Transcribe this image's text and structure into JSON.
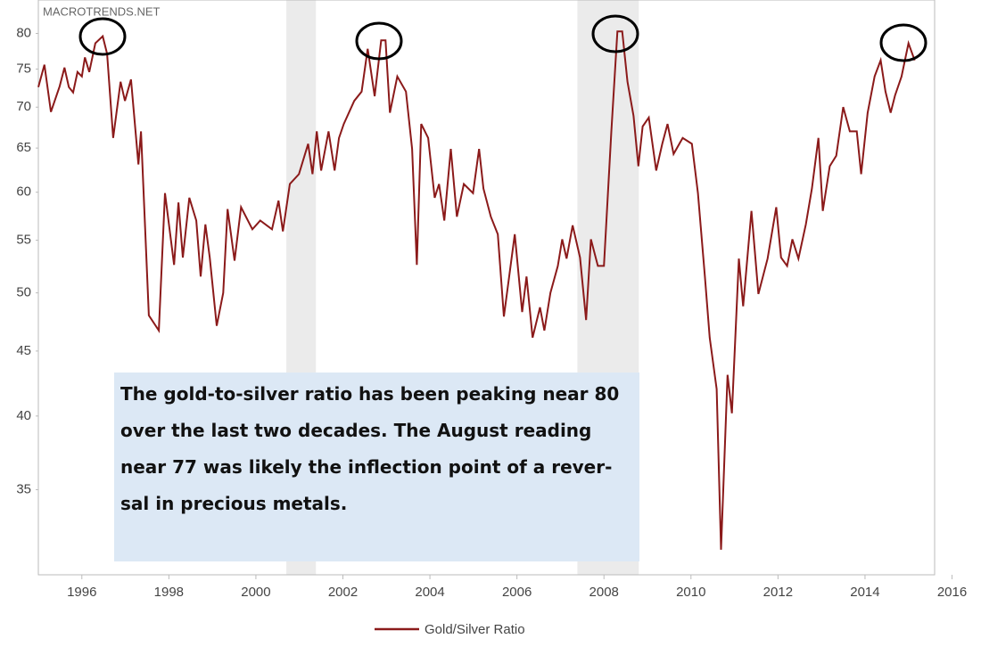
{
  "chart_data": {
    "type": "line",
    "watermark": "MACROTRENDS.NET",
    "log_scale": true,
    "grid": false,
    "xlim": [
      1995,
      2015.6
    ],
    "xticks": [
      1996,
      1998,
      2000,
      2002,
      2004,
      2006,
      2008,
      2010,
      2012,
      2014,
      2016
    ],
    "ylim": [
      30,
      85
    ],
    "yticks": [
      35,
      40,
      45,
      50,
      55,
      60,
      65,
      70,
      75,
      80
    ],
    "shaded_periods": [
      [
        2000.7,
        2001.38
      ],
      [
        2007.39,
        2008.8
      ]
    ],
    "annotation": [
      "The gold-to-silver ratio has been peaking near 80",
      "over the last two decades.  The August reading",
      "near 77 was likely the inflection point of a rever-",
      "sal in precious metals."
    ],
    "x": [
      1995.0,
      1995.14,
      1995.29,
      1995.49,
      1995.6,
      1995.7,
      1995.8,
      1995.9,
      1996.0,
      1996.07,
      1996.17,
      1996.31,
      1996.48,
      1996.58,
      1996.72,
      1996.89,
      1996.99,
      1997.13,
      1997.3,
      1997.36,
      1997.54,
      1997.77,
      1997.91,
      1998.12,
      1998.22,
      1998.32,
      1998.47,
      1998.63,
      1998.73,
      1998.84,
      1998.94,
      1999.1,
      1999.25,
      1999.35,
      1999.51,
      1999.66,
      1999.92,
      2000.1,
      2000.37,
      2000.52,
      2000.62,
      2000.78,
      2000.99,
      2001.2,
      2001.3,
      2001.4,
      2001.5,
      2001.67,
      2001.81,
      2001.91,
      2002.02,
      2002.26,
      2002.43,
      2002.57,
      2002.73,
      2002.88,
      2002.98,
      2003.08,
      2003.25,
      2003.45,
      2003.59,
      2003.7,
      2003.8,
      2003.96,
      2004.11,
      2004.21,
      2004.33,
      2004.48,
      2004.62,
      2004.78,
      2004.99,
      2005.13,
      2005.23,
      2005.4,
      2005.56,
      2005.7,
      2005.95,
      2006.12,
      2006.22,
      2006.36,
      2006.53,
      2006.63,
      2006.77,
      2006.94,
      2007.04,
      2007.14,
      2007.28,
      2007.45,
      2007.59,
      2007.7,
      2007.86,
      2008.0,
      2008.17,
      2008.31,
      2008.42,
      2008.54,
      2008.68,
      2008.79,
      2008.89,
      2009.03,
      2009.2,
      2009.34,
      2009.46,
      2009.6,
      2009.81,
      2010.02,
      2010.16,
      2010.32,
      2010.43,
      2010.59,
      2010.69,
      2010.84,
      2010.94,
      2011.1,
      2011.2,
      2011.39,
      2011.55,
      2011.76,
      2011.96,
      2012.07,
      2012.21,
      2012.33,
      2012.47,
      2012.64,
      2012.78,
      2012.93,
      2013.03,
      2013.19,
      2013.34,
      2013.5,
      2013.65,
      2013.81,
      2013.91,
      2014.06,
      2014.22,
      2014.36,
      2014.47,
      2014.59,
      2014.69,
      2014.84,
      2015.0,
      2015.14
    ],
    "series": [
      {
        "name": "Gold/Silver Ratio",
        "color": "#8b1a1a",
        "values": [
          72.6,
          75.6,
          69.4,
          72.7,
          75.2,
          72.6,
          71.9,
          74.6,
          74.0,
          76.6,
          74.6,
          78.6,
          79.6,
          77.1,
          66.2,
          73.3,
          70.8,
          73.6,
          63.1,
          67.0,
          48.0,
          46.7,
          59.9,
          52.6,
          58.9,
          53.3,
          59.4,
          57.0,
          51.5,
          56.6,
          53.3,
          47.1,
          50.0,
          58.2,
          53.0,
          58.4,
          56.1,
          57.0,
          56.1,
          59.1,
          55.9,
          60.9,
          62.0,
          65.5,
          62.0,
          67.0,
          62.4,
          67.0,
          62.4,
          66.2,
          67.9,
          70.8,
          72.0,
          77.8,
          71.4,
          79.0,
          79.0,
          69.3,
          74.0,
          72.0,
          64.9,
          52.6,
          67.9,
          66.2,
          59.4,
          60.9,
          57.0,
          64.9,
          57.4,
          60.9,
          59.9,
          64.9,
          60.4,
          57.4,
          55.6,
          47.9,
          55.6,
          48.3,
          51.5,
          46.1,
          48.7,
          46.7,
          50.0,
          52.5,
          55.1,
          53.2,
          56.5,
          53.3,
          47.6,
          55.1,
          52.5,
          52.5,
          67.0,
          80.3,
          80.3,
          73.3,
          68.9,
          62.9,
          67.6,
          68.7,
          62.4,
          65.5,
          67.9,
          64.3,
          66.2,
          65.5,
          59.9,
          51.5,
          46.1,
          42.0,
          31.4,
          43.1,
          40.2,
          53.2,
          48.8,
          58.0,
          49.9,
          53.2,
          58.4,
          53.3,
          52.5,
          55.1,
          53.2,
          56.6,
          60.4,
          66.2,
          58.0,
          62.9,
          64.1,
          70.0,
          67.0,
          67.0,
          62.0,
          69.3,
          74.0,
          76.2,
          72.0,
          69.3,
          71.5,
          74.0,
          78.6,
          76.2
        ]
      }
    ]
  }
}
